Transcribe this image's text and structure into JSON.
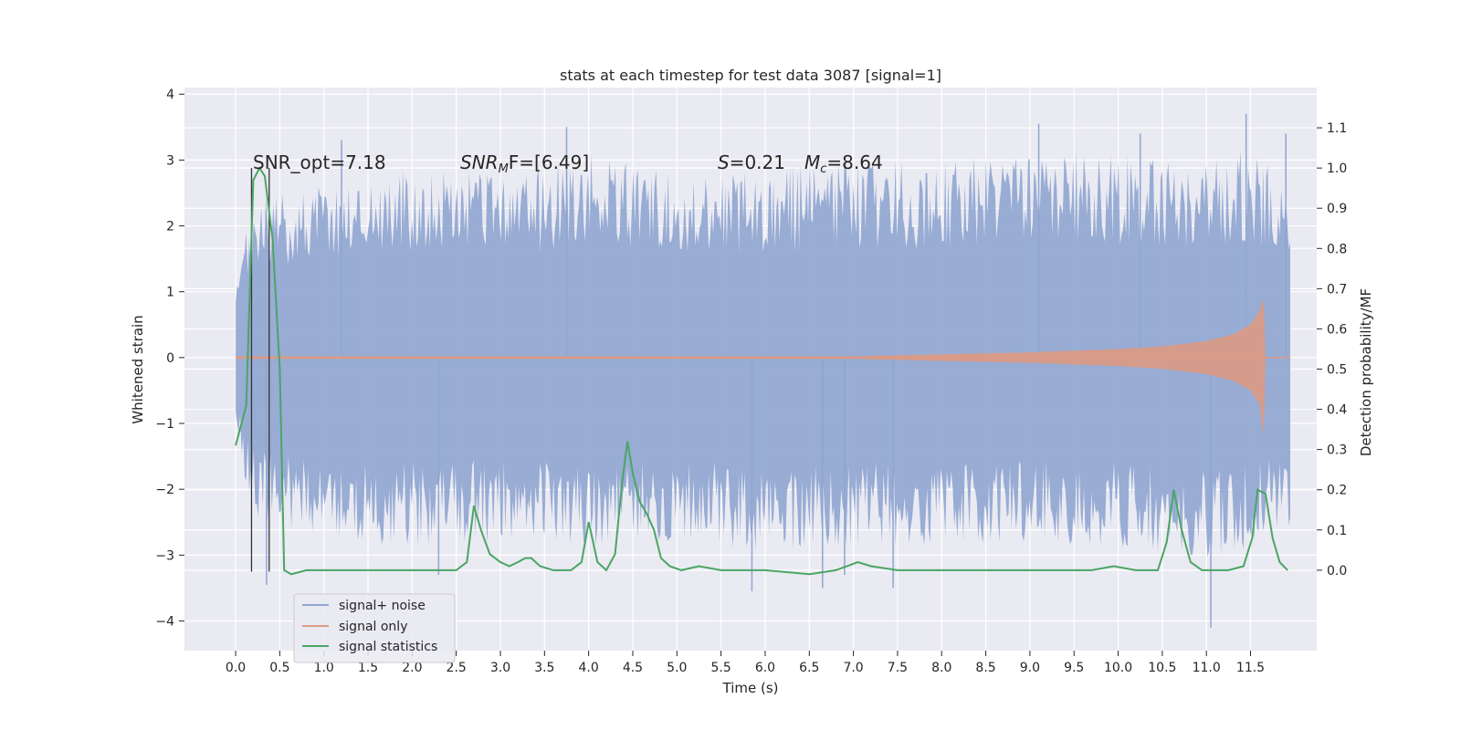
{
  "chart_data": {
    "type": "line",
    "title": "stats at each timestep for test data 3087 [signal=1]",
    "xlabel": "Time (s)",
    "ylabel": "Whitened strain",
    "ylabel_right": "Detection probability/MF",
    "xlim": [
      -0.58,
      12.25
    ],
    "ylim": [
      -4.45,
      4.1
    ],
    "ylim_right": [
      -0.2,
      1.2
    ],
    "x_ticks": [
      "0.0",
      "0.5",
      "1.0",
      "1.5",
      "2.0",
      "2.5",
      "3.0",
      "3.5",
      "4.0",
      "4.5",
      "5.0",
      "5.5",
      "6.0",
      "6.5",
      "7.0",
      "7.5",
      "8.0",
      "8.5",
      "9.0",
      "9.5",
      "10.0",
      "10.5",
      "11.0",
      "11.5"
    ],
    "y_ticks": [
      "4",
      "3",
      "2",
      "1",
      "0",
      "−1",
      "−2",
      "−3",
      "−4"
    ],
    "y_ticks_right": [
      "1.1",
      "1.0",
      "0.9",
      "0.8",
      "0.7",
      "0.6",
      "0.5",
      "0.4",
      "0.3",
      "0.2",
      "0.1",
      "0.0"
    ],
    "grid": true,
    "legend_position": "lower-left",
    "annotations": {
      "snr_opt": "SNR_opt=7.18",
      "snr_mf_name": "SNR",
      "snr_mf_sub": "M",
      "snr_mf_tail": "F=[6.49]",
      "s_name": "S",
      "s_value": "=0.21",
      "mc_name": "M",
      "mc_sub": "c",
      "mc_value": "=8.64"
    },
    "vlines_x": [
      0.18,
      0.38
    ],
    "series": [
      {
        "name": "signal+ noise",
        "color": "#8fa5d0",
        "envelope_upper": [
          [
            0.0,
            0.9
          ],
          [
            0.05,
            1.5
          ],
          [
            0.2,
            2.4
          ],
          [
            0.5,
            2.5
          ],
          [
            1.0,
            2.7
          ],
          [
            2.0,
            2.9
          ],
          [
            3.0,
            2.8
          ],
          [
            4.0,
            3.1
          ],
          [
            5.0,
            2.8
          ],
          [
            6.0,
            2.9
          ],
          [
            7.0,
            3.0
          ],
          [
            8.0,
            3.0
          ],
          [
            9.0,
            3.2
          ],
          [
            10.0,
            3.1
          ],
          [
            11.0,
            3.0
          ],
          [
            11.5,
            3.2
          ],
          [
            11.95,
            2.6
          ]
        ],
        "envelope_lower": [
          [
            0.0,
            -0.9
          ],
          [
            0.05,
            -1.5
          ],
          [
            0.2,
            -2.5
          ],
          [
            0.5,
            -2.6
          ],
          [
            1.0,
            -2.8
          ],
          [
            2.0,
            -2.9
          ],
          [
            3.0,
            -2.8
          ],
          [
            4.0,
            -2.9
          ],
          [
            5.0,
            -2.8
          ],
          [
            6.0,
            -3.0
          ],
          [
            7.0,
            -2.9
          ],
          [
            8.0,
            -2.9
          ],
          [
            9.0,
            -2.8
          ],
          [
            10.0,
            -2.9
          ],
          [
            11.0,
            -3.1
          ],
          [
            11.5,
            -2.9
          ],
          [
            11.95,
            -2.6
          ]
        ],
        "spikes": [
          [
            0.35,
            -3.45
          ],
          [
            1.2,
            3.3
          ],
          [
            2.3,
            -3.3
          ],
          [
            3.75,
            3.5
          ],
          [
            5.85,
            -3.55
          ],
          [
            6.65,
            -3.5
          ],
          [
            6.9,
            -3.3
          ],
          [
            7.45,
            -3.5
          ],
          [
            9.1,
            3.55
          ],
          [
            10.25,
            3.4
          ],
          [
            11.05,
            -4.1
          ],
          [
            11.45,
            3.7
          ],
          [
            11.9,
            3.4
          ]
        ]
      },
      {
        "name": "signal only",
        "color": "#dd9a83",
        "envelope": [
          [
            0.0,
            0.02
          ],
          [
            7.0,
            0.02
          ],
          [
            8.0,
            0.05
          ],
          [
            9.0,
            0.08
          ],
          [
            10.0,
            0.13
          ],
          [
            10.5,
            0.17
          ],
          [
            11.0,
            0.25
          ],
          [
            11.3,
            0.35
          ],
          [
            11.5,
            0.5
          ],
          [
            11.6,
            0.7
          ],
          [
            11.65,
            0.88
          ],
          [
            11.67,
            0.0
          ]
        ]
      },
      {
        "name": "signal statistics",
        "color": "#4aa564",
        "axis": "right",
        "x": [
          0.0,
          0.12,
          0.2,
          0.27,
          0.33,
          0.42,
          0.5,
          0.55,
          0.63,
          0.8,
          1.0,
          1.5,
          2.0,
          2.2,
          2.5,
          2.62,
          2.7,
          2.78,
          2.88,
          3.0,
          3.1,
          3.2,
          3.28,
          3.35,
          3.45,
          3.6,
          3.8,
          3.92,
          4.0,
          4.1,
          4.2,
          4.3,
          4.38,
          4.44,
          4.5,
          4.58,
          4.66,
          4.74,
          4.82,
          4.92,
          5.05,
          5.25,
          5.5,
          5.75,
          6.0,
          6.5,
          6.8,
          7.05,
          7.2,
          7.5,
          8.0,
          9.0,
          9.7,
          9.95,
          10.2,
          10.45,
          10.55,
          10.63,
          10.72,
          10.82,
          10.95,
          11.1,
          11.25,
          11.42,
          11.52,
          11.58,
          11.67,
          11.75,
          11.83,
          11.92
        ],
        "y": [
          0.31,
          0.41,
          0.97,
          1.0,
          0.98,
          0.82,
          0.5,
          0.0,
          -0.01,
          0.0,
          0.0,
          0.0,
          0.0,
          0.0,
          0.0,
          0.02,
          0.16,
          0.1,
          0.04,
          0.02,
          0.01,
          0.02,
          0.03,
          0.03,
          0.01,
          0.0,
          0.0,
          0.02,
          0.12,
          0.02,
          0.0,
          0.04,
          0.22,
          0.32,
          0.24,
          0.17,
          0.14,
          0.1,
          0.03,
          0.01,
          0.0,
          0.01,
          0.0,
          0.0,
          0.0,
          -0.01,
          0.0,
          0.02,
          0.01,
          0.0,
          0.0,
          0.0,
          0.0,
          0.01,
          0.0,
          0.0,
          0.07,
          0.2,
          0.1,
          0.02,
          0.0,
          0.0,
          0.0,
          0.01,
          0.08,
          0.2,
          0.19,
          0.08,
          0.02,
          0.0
        ]
      }
    ]
  }
}
